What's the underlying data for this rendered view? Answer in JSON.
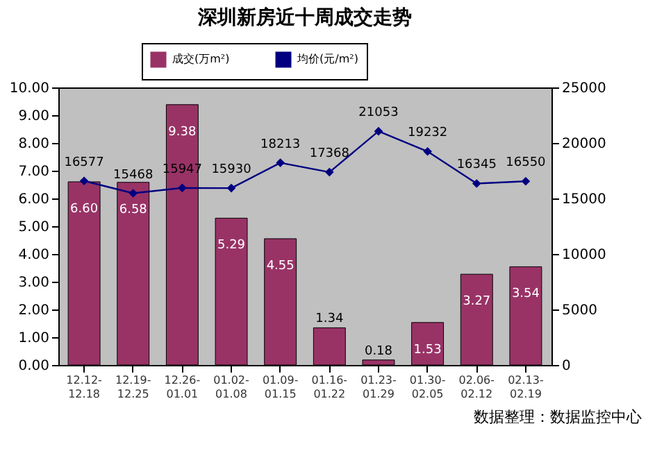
{
  "chart_data": {
    "type": "bar",
    "title": "深圳新房近十周成交走势",
    "categories": [
      "12.12-12.18",
      "12.19-12.25",
      "12.26-01.01",
      "01.02-01.08",
      "01.09-01.15",
      "01.16-01.22",
      "01.23-01.29",
      "01.30-02.05",
      "02.06-02.12",
      "02.13-02.19"
    ],
    "series": [
      {
        "name": "成交(万m²)",
        "type": "bar",
        "color": "#993366",
        "values": [
          6.6,
          6.58,
          9.38,
          5.29,
          4.55,
          1.34,
          0.18,
          1.53,
          3.27,
          3.54
        ],
        "value_labels": [
          "6.60",
          "6.58",
          "9.38",
          "5.29",
          "4.55",
          "1.34",
          "0.18",
          "1.53",
          "3.27",
          "3.54"
        ]
      },
      {
        "name": "均价(元/m²)",
        "type": "line",
        "axis": "y2",
        "color": "#000080",
        "marker": "diamond",
        "values": [
          16577,
          15468,
          15947,
          15930,
          18213,
          17368,
          21053,
          19232,
          16345,
          16550
        ],
        "data_labels": true
      }
    ],
    "ylim": [
      0,
      10
    ],
    "yticks": [
      {
        "value": 0,
        "label": "0.00"
      },
      {
        "value": 1,
        "label": "1.00"
      },
      {
        "value": 2,
        "label": "2.00"
      },
      {
        "value": 3,
        "label": "3.00"
      },
      {
        "value": 4,
        "label": "4.00"
      },
      {
        "value": 5,
        "label": "5.00"
      },
      {
        "value": 6,
        "label": "6.00"
      },
      {
        "value": 7,
        "label": "7.00"
      },
      {
        "value": 8,
        "label": "8.00"
      },
      {
        "value": 9,
        "label": "9.00"
      },
      {
        "value": 10,
        "label": "10.00"
      }
    ],
    "y2lim": [
      0,
      25000
    ],
    "y2ticks": [
      0,
      5000,
      10000,
      15000,
      20000,
      25000
    ],
    "line_style": "solid",
    "legend": "top",
    "grid": false,
    "annotations": [
      "数据整理：数据监控中心"
    ]
  }
}
